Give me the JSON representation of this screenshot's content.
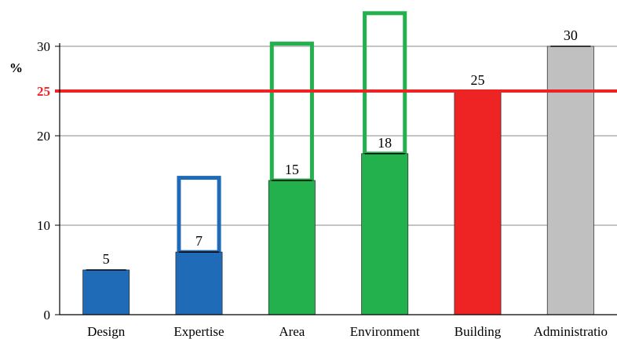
{
  "chart_data": {
    "type": "bar",
    "categories": [
      "Design",
      "Expertise",
      "Area",
      "Environment",
      "Building",
      "Administratio"
    ],
    "values": [
      5,
      7,
      15,
      18,
      25,
      30
    ],
    "value_labels": [
      "5",
      "7",
      "15",
      "18",
      "25",
      "30"
    ],
    "bar_colors": [
      "#1f6bb8",
      "#1f6bb8",
      "#22b14c",
      "#22b14c",
      "#ee2424",
      "#c0c0c0"
    ],
    "outline_boxes": [
      {
        "category": "Expertise",
        "from": 7,
        "to": 15.3,
        "color": "#1f6bb8"
      },
      {
        "category": "Area",
        "from": 15,
        "to": 30.3,
        "color": "#22b14c"
      },
      {
        "category": "Environment",
        "from": 18,
        "to": 33.7,
        "color": "#22b14c"
      }
    ],
    "reference_line": {
      "value": 25,
      "label": "25",
      "color": "#ee2424"
    },
    "ylabel": "%",
    "yticks": [
      "0",
      "10",
      "20",
      "30"
    ],
    "ylim": [
      0,
      30
    ],
    "grid": true
  }
}
